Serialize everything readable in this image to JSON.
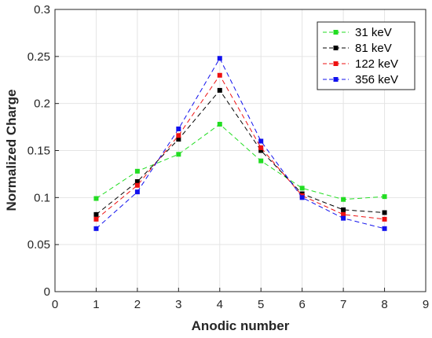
{
  "chart_data": {
    "type": "line",
    "title": "",
    "xlabel": "Anodic number",
    "ylabel": "Normalized Charge",
    "xlim": [
      0,
      9
    ],
    "ylim": [
      0,
      0.3
    ],
    "x_ticks": [
      "0",
      "1",
      "2",
      "3",
      "4",
      "5",
      "6",
      "7",
      "8",
      "9"
    ],
    "y_ticks": [
      "0",
      "0.05",
      "0.1",
      "0.15",
      "0.2",
      "0.25",
      "0.3"
    ],
    "grid": true,
    "legend_position": "top-right",
    "line_style": "dashed",
    "marker": "square",
    "x": [
      1,
      2,
      3,
      4,
      5,
      6,
      7,
      8
    ],
    "series": [
      {
        "name": "31 keV",
        "color": "#22dd22",
        "values": [
          0.099,
          0.128,
          0.146,
          0.178,
          0.139,
          0.11,
          0.098,
          0.101
        ]
      },
      {
        "name": "81 keV",
        "color": "#000000",
        "values": [
          0.082,
          0.117,
          0.162,
          0.214,
          0.15,
          0.104,
          0.087,
          0.084
        ]
      },
      {
        "name": "122 keV",
        "color": "#ee1111",
        "values": [
          0.077,
          0.113,
          0.166,
          0.23,
          0.153,
          0.102,
          0.082,
          0.077
        ]
      },
      {
        "name": "356 keV",
        "color": "#1111ee",
        "values": [
          0.067,
          0.106,
          0.173,
          0.248,
          0.16,
          0.1,
          0.078,
          0.067
        ]
      }
    ]
  }
}
